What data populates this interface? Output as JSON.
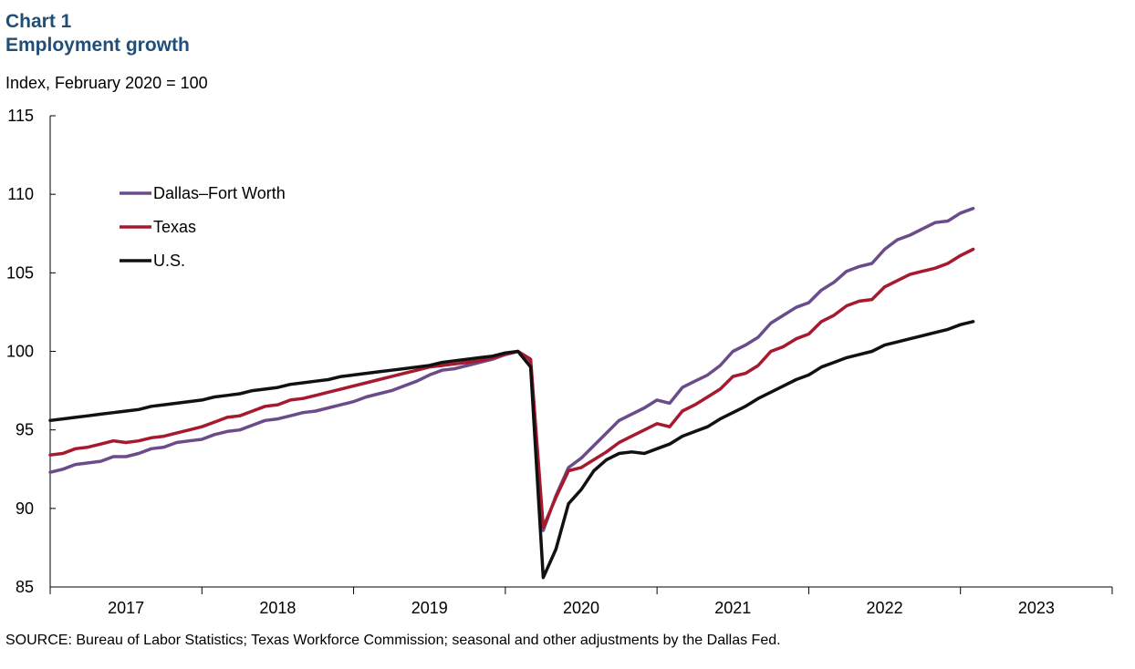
{
  "header": {
    "chart_number": "Chart 1",
    "title": "Employment growth",
    "units": "Index, February 2020 = 100"
  },
  "source": "SOURCE: Bureau of Labor Statistics; Texas Workforce Commission; seasonal and other adjustments by the Dallas Fed.",
  "chart_data": {
    "type": "line",
    "title": "Employment growth",
    "ylabel": "Index, February 2020 = 100",
    "xlabel": "",
    "ylim": [
      85,
      115
    ],
    "yticks": [
      85,
      90,
      95,
      100,
      105,
      110,
      115
    ],
    "x_tick_labels": [
      "2017",
      "2018",
      "2019",
      "2020",
      "2021",
      "2022",
      "2023"
    ],
    "x_start": "2017-01",
    "x_end": "2023-12",
    "grid": false,
    "legend_position": "top-left",
    "series": [
      {
        "name": "Dallas–Fort Worth",
        "color": "#6b4c8a",
        "start": "2017-01",
        "values": [
          92.3,
          92.5,
          92.8,
          92.9,
          93.0,
          93.3,
          93.3,
          93.5,
          93.8,
          93.9,
          94.2,
          94.3,
          94.4,
          94.7,
          94.9,
          95.0,
          95.3,
          95.6,
          95.7,
          95.9,
          96.1,
          96.2,
          96.4,
          96.6,
          96.8,
          97.1,
          97.3,
          97.5,
          97.8,
          98.1,
          98.5,
          98.8,
          98.9,
          99.1,
          99.3,
          99.5,
          99.8,
          100.0,
          99.3,
          88.6,
          90.8,
          92.6,
          93.2,
          94.0,
          94.8,
          95.6,
          96.0,
          96.4,
          96.9,
          96.7,
          97.7,
          98.1,
          98.5,
          99.1,
          100.0,
          100.4,
          100.9,
          101.8,
          102.3,
          102.8,
          103.1,
          103.9,
          104.4,
          105.1,
          105.4,
          105.6,
          106.5,
          107.1,
          107.4,
          107.8,
          108.2,
          108.3,
          108.8,
          109.1
        ]
      },
      {
        "name": "Texas",
        "color": "#a6192e",
        "start": "2017-01",
        "values": [
          93.4,
          93.5,
          93.8,
          93.9,
          94.1,
          94.3,
          94.2,
          94.3,
          94.5,
          94.6,
          94.8,
          95.0,
          95.2,
          95.5,
          95.8,
          95.9,
          96.2,
          96.5,
          96.6,
          96.9,
          97.0,
          97.2,
          97.4,
          97.6,
          97.8,
          98.0,
          98.2,
          98.4,
          98.6,
          98.8,
          99.0,
          99.1,
          99.2,
          99.3,
          99.4,
          99.6,
          99.8,
          100.0,
          99.5,
          88.8,
          90.7,
          92.4,
          92.6,
          93.1,
          93.6,
          94.2,
          94.6,
          95.0,
          95.4,
          95.2,
          96.2,
          96.6,
          97.1,
          97.6,
          98.4,
          98.6,
          99.1,
          100.0,
          100.3,
          100.8,
          101.1,
          101.9,
          102.3,
          102.9,
          103.2,
          103.3,
          104.1,
          104.5,
          104.9,
          105.1,
          105.3,
          105.6,
          106.1,
          106.5
        ]
      },
      {
        "name": "U.S.",
        "color": "#111111",
        "start": "2017-01",
        "values": [
          95.6,
          95.7,
          95.8,
          95.9,
          96.0,
          96.1,
          96.2,
          96.3,
          96.5,
          96.6,
          96.7,
          96.8,
          96.9,
          97.1,
          97.2,
          97.3,
          97.5,
          97.6,
          97.7,
          97.9,
          98.0,
          98.1,
          98.2,
          98.4,
          98.5,
          98.6,
          98.7,
          98.8,
          98.9,
          99.0,
          99.1,
          99.3,
          99.4,
          99.5,
          99.6,
          99.7,
          99.9,
          100.0,
          99.0,
          85.6,
          87.4,
          90.3,
          91.2,
          92.4,
          93.1,
          93.5,
          93.6,
          93.5,
          93.8,
          94.1,
          94.6,
          94.9,
          95.2,
          95.7,
          96.1,
          96.5,
          97.0,
          97.4,
          97.8,
          98.2,
          98.5,
          99.0,
          99.3,
          99.6,
          99.8,
          100.0,
          100.4,
          100.6,
          100.8,
          101.0,
          101.2,
          101.4,
          101.7,
          101.9
        ]
      }
    ]
  }
}
